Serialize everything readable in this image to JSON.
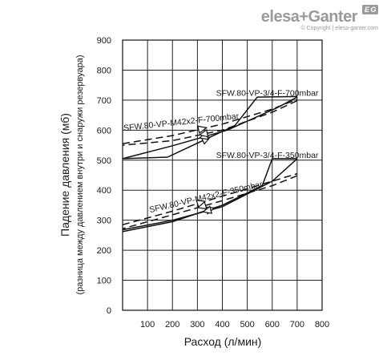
{
  "brand": {
    "logo_text": "elesa+Ganter",
    "badge": "E G",
    "copyright": "© Copyright | elesa-ganter.com"
  },
  "chart_data": {
    "type": "line",
    "xlabel": "Расход (л/мин)",
    "ylabel": "Падение давления (мб)",
    "ylabel2": "(разница между давлением внутри и снаружи резервуара)",
    "xlim": [
      0,
      800
    ],
    "ylim": [
      0,
      900
    ],
    "xticks": [
      100,
      200,
      300,
      400,
      500,
      600,
      700,
      800
    ],
    "yticks": [
      0,
      100,
      200,
      300,
      400,
      500,
      600,
      700,
      800,
      900
    ],
    "grid": true,
    "annotations": [
      {
        "text": "SFW.80-VP-3/4-F-700mbar",
        "at": [
          580,
          715
        ]
      },
      {
        "text": "SFW.80-VP-M42x2-F-700mbar",
        "at": [
          5,
          598
        ]
      },
      {
        "text": "SFW.80-VP-3/4-F-350mbar",
        "at": [
          580,
          508
        ]
      },
      {
        "text": "SFW.80-VP-M42x2-F-350mbar",
        "at": [
          110,
          325
        ]
      }
    ],
    "series": [
      {
        "name": "SFW.80-VP-3/4-F-700mbar",
        "style": "solid",
        "x": [
          0,
          180,
          450,
          540,
          700
        ],
        "y": [
          505,
          510,
          615,
          710,
          712
        ],
        "return_x": [
          700,
          620,
          420,
          200,
          0
        ],
        "return_y": [
          710,
          675,
          600,
          548,
          505
        ]
      },
      {
        "name": "SFW.80-VP-M42x2-F-700mbar",
        "style": "dashed",
        "x": [
          0,
          200,
          400,
          600,
          700
        ],
        "y": [
          555,
          582,
          620,
          670,
          703
        ],
        "return_x": [
          700,
          600,
          400,
          200,
          0
        ],
        "return_y": [
          698,
          660,
          600,
          565,
          550
        ]
      },
      {
        "name": "SFW.80-VP-3/4-F-350mbar",
        "style": "solid",
        "x": [
          0,
          200,
          400,
          560,
          600,
          700
        ],
        "y": [
          262,
          295,
          350,
          415,
          505,
          505
        ],
        "return_x": [
          700,
          600,
          400,
          200,
          0
        ],
        "return_y": [
          505,
          430,
          345,
          300,
          268
        ]
      },
      {
        "name": "SFW.80-VP-M42x2-F-350mbar",
        "style": "dashed",
        "x": [
          0,
          200,
          400,
          600,
          700
        ],
        "y": [
          285,
          330,
          380,
          430,
          455
        ],
        "return_x": [
          700,
          600,
          400,
          200,
          0
        ],
        "return_y": [
          448,
          415,
          365,
          318,
          272
        ]
      }
    ]
  }
}
